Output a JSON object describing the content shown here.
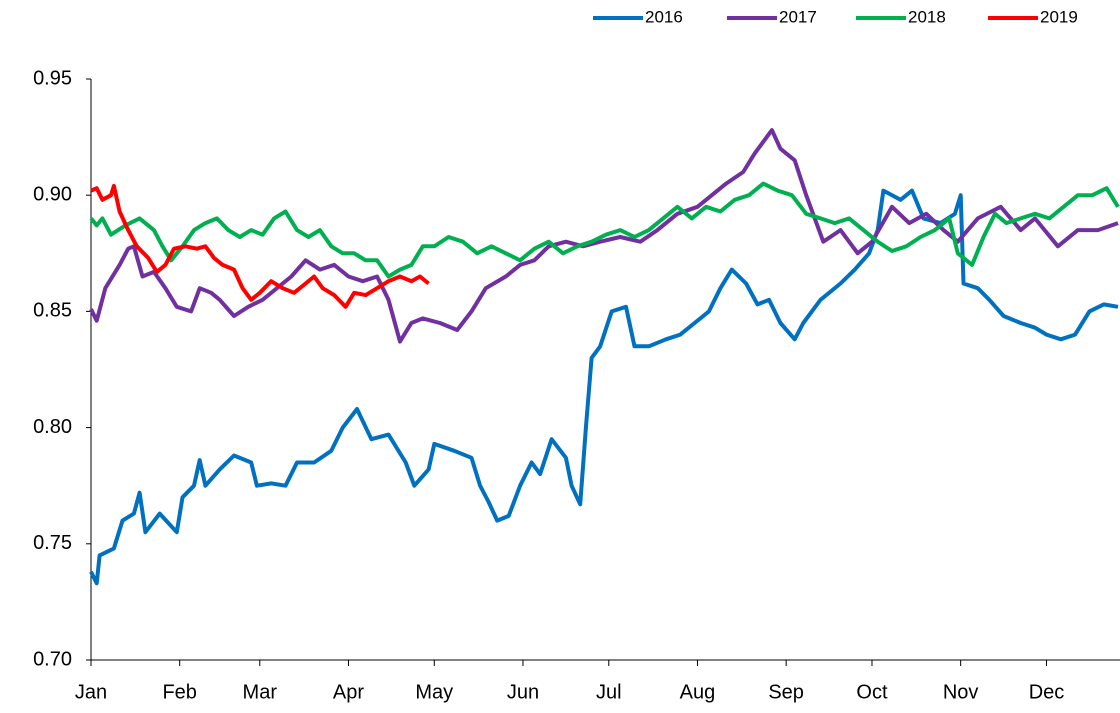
{
  "chart_data": {
    "type": "line",
    "xlim": [
      0,
      359
    ],
    "ylim": [
      0.7,
      0.95
    ],
    "yticks": [
      {
        "value": 0.7,
        "label": "0.70"
      },
      {
        "value": 0.75,
        "label": "0.75"
      },
      {
        "value": 0.8,
        "label": "0.80"
      },
      {
        "value": 0.85,
        "label": "0.85"
      },
      {
        "value": 0.9,
        "label": "0.90"
      },
      {
        "value": 0.95,
        "label": "0.95"
      }
    ],
    "xticks": [
      {
        "value": 0,
        "label": "Jan"
      },
      {
        "value": 31,
        "label": "Feb"
      },
      {
        "value": 59,
        "label": "Mar"
      },
      {
        "value": 90,
        "label": "Apr"
      },
      {
        "value": 120,
        "label": "May"
      },
      {
        "value": 151,
        "label": "Jun"
      },
      {
        "value": 181,
        "label": "Jul"
      },
      {
        "value": 212,
        "label": "Aug"
      },
      {
        "value": 243,
        "label": "Sep"
      },
      {
        "value": 273,
        "label": "Oct"
      },
      {
        "value": 304,
        "label": "Nov"
      },
      {
        "value": 334,
        "label": "Dec"
      }
    ],
    "legend": "top-right",
    "series": [
      {
        "name": "2016",
        "color": "#0070C0",
        "x": [
          0,
          2,
          3,
          8,
          11,
          15,
          17,
          19,
          24,
          30,
          32,
          36,
          38,
          40,
          45,
          50,
          56,
          58,
          63,
          68,
          72,
          78,
          84,
          88,
          93,
          98,
          104,
          110,
          113,
          118,
          120,
          127,
          133,
          136,
          139,
          142,
          146,
          150,
          154,
          157,
          161,
          166,
          168,
          171,
          173,
          175,
          178,
          182,
          187,
          190,
          195,
          201,
          206,
          211,
          216,
          220,
          224,
          229,
          233,
          237,
          241,
          246,
          249,
          255,
          262,
          267,
          272,
          275,
          277,
          283,
          287,
          291,
          297,
          302,
          304,
          305,
          310,
          314,
          319,
          325,
          330,
          334,
          339,
          344,
          349,
          354,
          359
        ],
        "values": [
          0.738,
          0.733,
          0.745,
          0.748,
          0.76,
          0.763,
          0.772,
          0.755,
          0.763,
          0.755,
          0.77,
          0.775,
          0.786,
          0.775,
          0.782,
          0.788,
          0.785,
          0.775,
          0.776,
          0.775,
          0.785,
          0.785,
          0.79,
          0.8,
          0.808,
          0.795,
          0.797,
          0.785,
          0.775,
          0.782,
          0.793,
          0.79,
          0.787,
          0.775,
          0.768,
          0.76,
          0.762,
          0.775,
          0.785,
          0.78,
          0.795,
          0.787,
          0.775,
          0.767,
          0.8,
          0.83,
          0.835,
          0.85,
          0.852,
          0.835,
          0.835,
          0.838,
          0.84,
          0.845,
          0.85,
          0.86,
          0.868,
          0.862,
          0.853,
          0.855,
          0.845,
          0.838,
          0.845,
          0.855,
          0.862,
          0.868,
          0.875,
          0.885,
          0.902,
          0.898,
          0.902,
          0.89,
          0.888,
          0.892,
          0.9,
          0.862,
          0.86,
          0.855,
          0.848,
          0.845,
          0.843,
          0.84,
          0.838,
          0.84,
          0.85,
          0.853,
          0.852
        ]
      },
      {
        "name": "2017",
        "color": "#7030A0",
        "x": [
          0,
          2,
          5,
          10,
          13,
          15,
          18,
          22,
          26,
          30,
          35,
          38,
          42,
          45,
          50,
          55,
          60,
          65,
          70,
          75,
          80,
          85,
          90,
          95,
          100,
          104,
          108,
          112,
          116,
          122,
          128,
          133,
          138,
          145,
          150,
          155,
          160,
          166,
          172,
          178,
          185,
          192,
          198,
          205,
          212,
          217,
          222,
          228,
          232,
          238,
          241,
          246,
          250,
          256,
          262,
          268,
          273,
          280,
          286,
          292,
          298,
          303,
          310,
          318,
          325,
          330,
          338,
          345,
          352,
          359
        ],
        "values": [
          0.851,
          0.846,
          0.86,
          0.87,
          0.877,
          0.878,
          0.865,
          0.867,
          0.86,
          0.852,
          0.85,
          0.86,
          0.858,
          0.855,
          0.848,
          0.852,
          0.855,
          0.86,
          0.865,
          0.872,
          0.868,
          0.87,
          0.865,
          0.863,
          0.865,
          0.855,
          0.837,
          0.845,
          0.847,
          0.845,
          0.842,
          0.85,
          0.86,
          0.865,
          0.87,
          0.872,
          0.878,
          0.88,
          0.878,
          0.88,
          0.882,
          0.88,
          0.885,
          0.892,
          0.895,
          0.9,
          0.905,
          0.91,
          0.918,
          0.928,
          0.92,
          0.915,
          0.9,
          0.88,
          0.885,
          0.875,
          0.88,
          0.895,
          0.888,
          0.892,
          0.885,
          0.88,
          0.89,
          0.895,
          0.885,
          0.89,
          0.878,
          0.885,
          0.885,
          0.888
        ]
      },
      {
        "name": "2018",
        "color": "#00B050",
        "x": [
          0,
          2,
          4,
          7,
          12,
          17,
          22,
          25,
          28,
          32,
          36,
          40,
          44,
          48,
          52,
          56,
          60,
          64,
          68,
          72,
          76,
          80,
          84,
          88,
          92,
          96,
          100,
          104,
          108,
          112,
          116,
          120,
          125,
          130,
          135,
          140,
          145,
          150,
          155,
          160,
          165,
          170,
          175,
          180,
          185,
          190,
          195,
          200,
          205,
          210,
          215,
          220,
          225,
          230,
          235,
          240,
          245,
          250,
          255,
          260,
          265,
          270,
          275,
          280,
          285,
          290,
          295,
          300,
          303,
          308,
          312,
          316,
          320,
          325,
          330,
          335,
          340,
          345,
          350,
          355,
          359
        ],
        "values": [
          0.89,
          0.887,
          0.89,
          0.883,
          0.887,
          0.89,
          0.885,
          0.878,
          0.872,
          0.878,
          0.885,
          0.888,
          0.89,
          0.885,
          0.882,
          0.885,
          0.883,
          0.89,
          0.893,
          0.885,
          0.882,
          0.885,
          0.878,
          0.875,
          0.875,
          0.872,
          0.872,
          0.865,
          0.868,
          0.87,
          0.878,
          0.878,
          0.882,
          0.88,
          0.875,
          0.878,
          0.875,
          0.872,
          0.877,
          0.88,
          0.875,
          0.878,
          0.88,
          0.883,
          0.885,
          0.882,
          0.885,
          0.89,
          0.895,
          0.89,
          0.895,
          0.893,
          0.898,
          0.9,
          0.905,
          0.902,
          0.9,
          0.892,
          0.89,
          0.888,
          0.89,
          0.885,
          0.88,
          0.876,
          0.878,
          0.882,
          0.885,
          0.89,
          0.875,
          0.87,
          0.882,
          0.892,
          0.888,
          0.89,
          0.892,
          0.89,
          0.895,
          0.9,
          0.9,
          0.903,
          0.895
        ]
      },
      {
        "name": "2019",
        "color": "#FF0000",
        "x": [
          0,
          2,
          4,
          7,
          8,
          10,
          13,
          16,
          20,
          23,
          26,
          29,
          33,
          37,
          40,
          43,
          46,
          50,
          53,
          56,
          59,
          63,
          67,
          71,
          75,
          78,
          81,
          85,
          89,
          92,
          96,
          100,
          104,
          108,
          112,
          115,
          118
        ],
        "values": [
          0.902,
          0.903,
          0.898,
          0.9,
          0.904,
          0.893,
          0.885,
          0.878,
          0.873,
          0.867,
          0.87,
          0.877,
          0.878,
          0.877,
          0.878,
          0.873,
          0.87,
          0.868,
          0.86,
          0.855,
          0.858,
          0.863,
          0.86,
          0.858,
          0.862,
          0.865,
          0.86,
          0.857,
          0.852,
          0.858,
          0.857,
          0.86,
          0.863,
          0.865,
          0.863,
          0.865,
          0.862
        ]
      }
    ]
  }
}
